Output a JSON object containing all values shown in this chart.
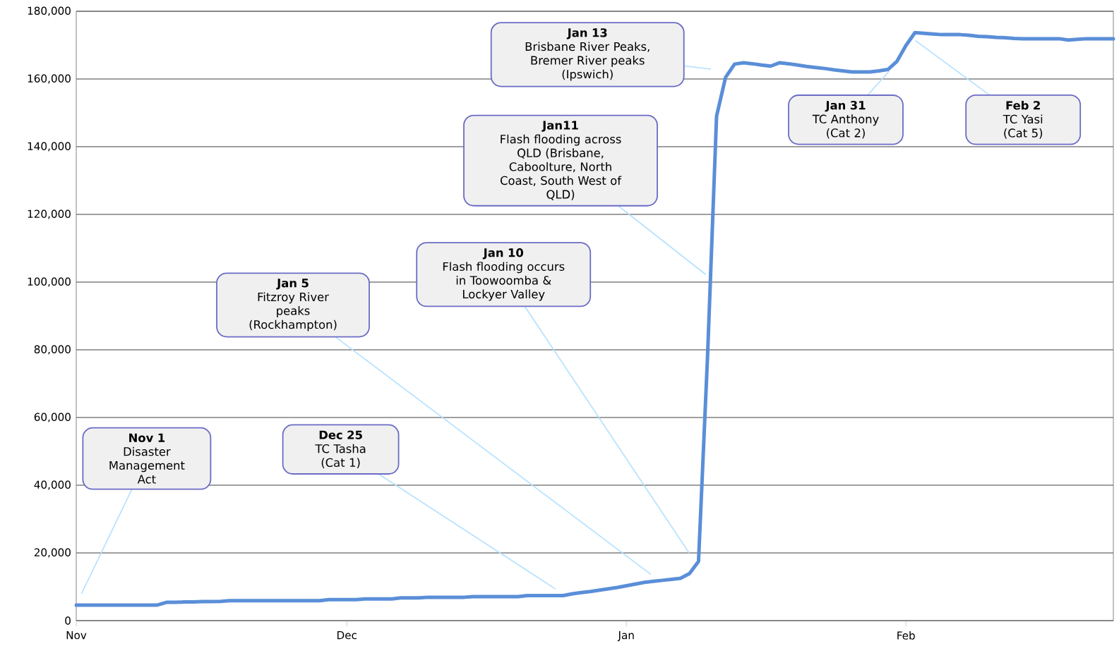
{
  "chart_data": {
    "type": "line",
    "color": "#5a8ed8",
    "grid": "y",
    "ylim": [
      0,
      180000
    ],
    "yticks": [
      0,
      {
        "value": 20000,
        "label": "20,000"
      },
      {
        "value": 40000,
        "label": "40,000"
      },
      {
        "value": 60000,
        "label": "60,000"
      },
      {
        "value": 80000,
        "label": "80,000"
      },
      {
        "value": 100000,
        "label": "100,000"
      },
      {
        "value": 120000,
        "label": "120,000"
      },
      {
        "value": 140000,
        "label": "140,000"
      },
      {
        "value": 160000,
        "label": "160,000"
      },
      {
        "value": 180000,
        "label": "180,000"
      }
    ],
    "categories": [
      "Nov",
      null,
      null,
      null,
      null,
      null,
      null,
      null,
      null,
      null,
      null,
      null,
      null,
      null,
      null,
      null,
      null,
      null,
      null,
      null,
      null,
      null,
      null,
      null,
      null,
      null,
      null,
      null,
      null,
      null,
      "Dec",
      null,
      null,
      null,
      null,
      null,
      null,
      null,
      null,
      null,
      null,
      null,
      null,
      null,
      null,
      null,
      null,
      null,
      null,
      null,
      null,
      null,
      null,
      null,
      null,
      null,
      null,
      null,
      null,
      null,
      null,
      "Jan",
      null,
      null,
      null,
      null,
      null,
      null,
      null,
      null,
      null,
      null,
      null,
      null,
      null,
      null,
      null,
      null,
      null,
      null,
      null,
      null,
      null,
      null,
      null,
      null,
      null,
      null,
      null,
      null,
      null,
      null,
      "Feb",
      null,
      null,
      null,
      null,
      null,
      null,
      null,
      null,
      null,
      null,
      null,
      null,
      null,
      null,
      null,
      null,
      null,
      null,
      null,
      null,
      null,
      null,
      null
    ],
    "values": [
      4600,
      4600,
      4600,
      4600,
      4600,
      4600,
      4600,
      4600,
      4600,
      4600,
      5400,
      5400,
      5500,
      5500,
      5600,
      5600,
      5700,
      5900,
      5900,
      5900,
      5900,
      5900,
      5900,
      5900,
      5900,
      5900,
      5900,
      5900,
      6200,
      6200,
      6200,
      6200,
      6400,
      6400,
      6400,
      6400,
      6700,
      6700,
      6700,
      6900,
      6900,
      6900,
      6900,
      6900,
      7100,
      7100,
      7100,
      7100,
      7100,
      7100,
      7400,
      7400,
      7400,
      7400,
      7400,
      7900,
      8300,
      8600,
      9000,
      9400,
      9800,
      10300,
      10800,
      11300,
      11600,
      11900,
      12200,
      12500,
      13900,
      17500,
      78000,
      149000,
      160500,
      164400,
      164800,
      164500,
      164100,
      163800,
      164800,
      164500,
      164100,
      163700,
      163400,
      163100,
      162700,
      162400,
      162100,
      162100,
      162100,
      162400,
      162800,
      165200,
      169900,
      173700,
      173500,
      173300,
      173100,
      173100,
      173100,
      172900,
      172600,
      172500,
      172300,
      172200,
      172000,
      171900,
      171900,
      171900,
      171900,
      171900,
      171500,
      171700,
      171900,
      171900,
      171900,
      171900
    ],
    "annotations": [
      "**Nov 1**\nDisaster\nManagement\nAct",
      "**Dec 25**\nTC Tasha\n(Cat 1)",
      "**Jan 5**\nFitzroy River\npeaks\n(Rockhampton)",
      "**Jan 10**\nFlash flooding occurs\nin Toowoomba &\nLockyer Valley",
      "**Jan11**\nFlash flooding across\nQLD (Brisbane,\nCaboolture, North\nCoast, South West of\nQLD)",
      "**Jan 13**\nBrisbane River Peaks,\nBremer River peaks\n(Ipswich)",
      {
        "text": "**Jan 31**\nTC Anthony\n(Cat 2)",
        "y": 162400
      },
      "**Feb 2**\nTC Yasi\n(Cat 5)"
    ]
  }
}
